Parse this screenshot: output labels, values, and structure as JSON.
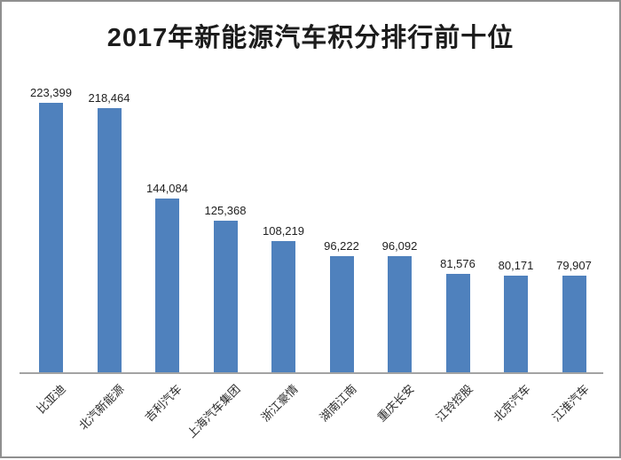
{
  "page": {
    "background_color": "#ffffff",
    "frame_border_color": "#8f8f8f"
  },
  "chart_data": {
    "type": "bar",
    "title": "2017年新能源汽车积分排行前十位",
    "categories": [
      "比亚迪",
      "北汽新能源",
      "吉利汽车",
      "上海汽车集团",
      "浙江豪情",
      "湖南江南",
      "重庆长安",
      "江铃控股",
      "北京汽车",
      "江淮汽车"
    ],
    "values": [
      223399,
      218464,
      144084,
      125368,
      108219,
      96222,
      96092,
      81576,
      80171,
      79907
    ],
    "value_labels": [
      "223,399",
      "218,464",
      "144,084",
      "125,368",
      "108,219",
      "96,222",
      "96,092",
      "81,576",
      "80,171",
      "79,907"
    ],
    "xlabel": "",
    "ylabel": "",
    "ylim": [
      0,
      250000
    ],
    "grid": false,
    "legend": null,
    "bar_color": "#4f81bd",
    "axis_line_color": "#a3a3a3",
    "x_tick_rotation_deg": -45
  }
}
